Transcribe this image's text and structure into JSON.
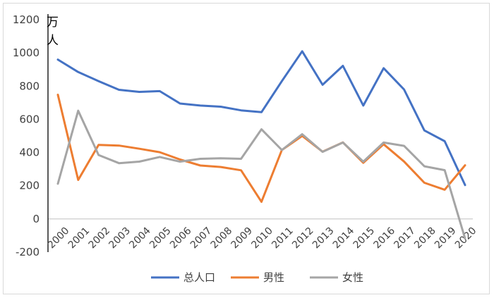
{
  "chart_data": {
    "type": "line",
    "unit_label": [
      "万",
      "人"
    ],
    "ylim": [
      -200,
      1200
    ],
    "yticks": [
      -200,
      0,
      200,
      400,
      600,
      800,
      1000,
      1200
    ],
    "categories": [
      "2000",
      "2001",
      "2002",
      "2003",
      "2004",
      "2005",
      "2006",
      "2007",
      "2008",
      "2009",
      "2010",
      "2011",
      "2012",
      "2013",
      "2014",
      "2015",
      "2016",
      "2017",
      "2018",
      "2019",
      "2020"
    ],
    "series": [
      {
        "name": "总人口",
        "color": "#4472C4",
        "values": [
          960,
          885,
          830,
          778,
          765,
          770,
          695,
          683,
          676,
          654,
          643,
          830,
          1010,
          808,
          922,
          683,
          908,
          780,
          533,
          468,
          204
        ]
      },
      {
        "name": "男性",
        "color": "#ED7D31",
        "values": [
          748,
          235,
          446,
          442,
          423,
          402,
          358,
          322,
          313,
          293,
          103,
          415,
          500,
          405,
          461,
          338,
          450,
          346,
          218,
          176,
          323
        ]
      },
      {
        "name": "女性",
        "color": "#A5A5A5",
        "values": [
          212,
          652,
          385,
          336,
          345,
          373,
          345,
          362,
          365,
          362,
          540,
          415,
          510,
          404,
          460,
          345,
          460,
          440,
          317,
          294,
          -118
        ]
      }
    ],
    "legend_position": "bottom",
    "grid": false
  }
}
